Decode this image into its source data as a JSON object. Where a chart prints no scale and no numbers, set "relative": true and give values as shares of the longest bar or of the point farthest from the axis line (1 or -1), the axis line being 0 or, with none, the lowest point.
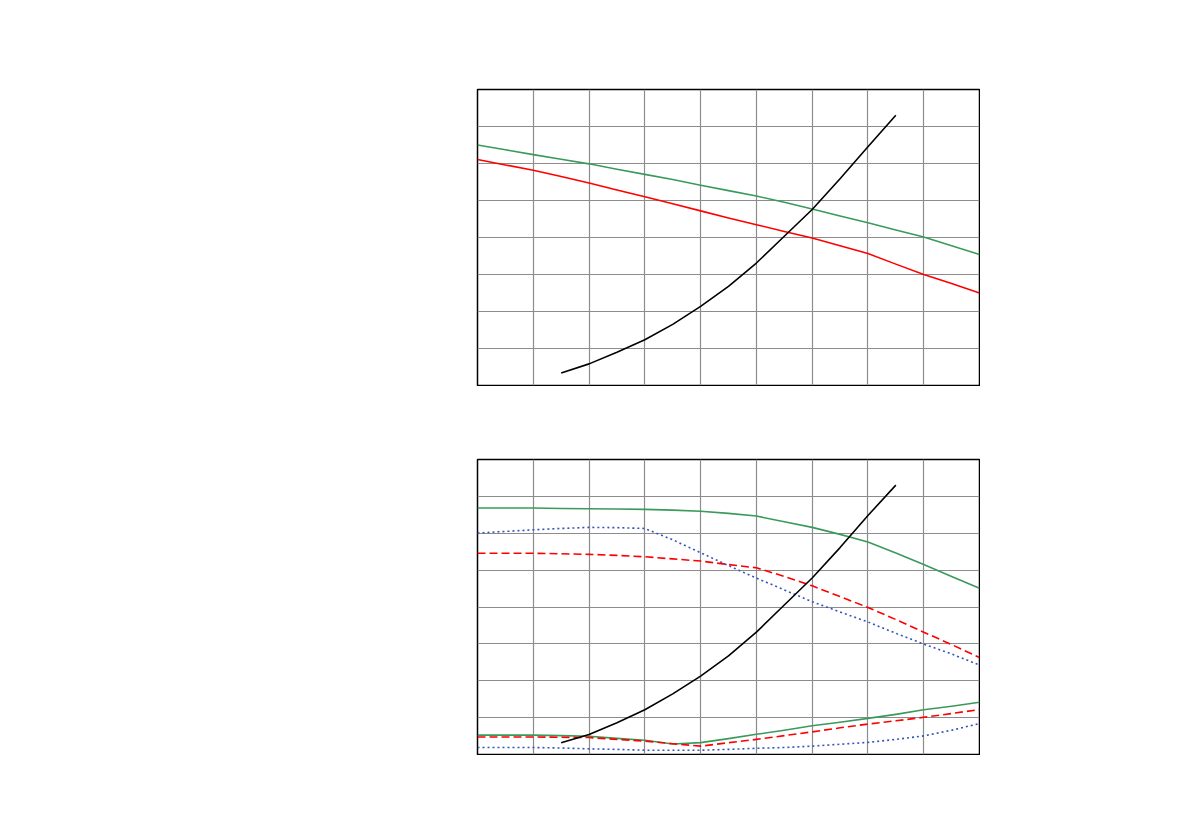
{
  "chart_data": [
    {
      "type": "line",
      "relative": true,
      "grid": true,
      "tick_labels": false,
      "categories": [
        null,
        null,
        null,
        null,
        null,
        null,
        null,
        null,
        null,
        null,
        null,
        null,
        null,
        null,
        null,
        null,
        null,
        null,
        null
      ],
      "series": [
        {
          "color": "#3a9a5c",
          "line_style": "solid",
          "values": [
            0.89,
            0.872,
            0.854,
            0.837,
            0.82,
            0.8,
            0.781,
            0.762,
            0.741,
            0.721,
            0.701,
            0.678,
            0.653,
            0.627,
            0.602,
            0.575,
            0.549,
            0.517,
            0.485
          ]
        },
        {
          "color": "#ff0000",
          "line_style": "solid",
          "values": [
            0.836,
            0.816,
            0.796,
            0.773,
            0.749,
            0.723,
            0.698,
            0.672,
            0.646,
            0.62,
            0.595,
            0.57,
            0.546,
            0.517,
            0.488,
            0.449,
            0.411,
            0.377,
            0.342
          ]
        },
        {
          "color": "#000000",
          "line_style": "solid",
          "values": [
            null,
            null,
            null,
            0.046,
            0.08,
            0.123,
            0.169,
            0.226,
            0.293,
            0.367,
            0.453,
            0.552,
            0.651,
            0.765,
            0.883,
            1.0,
            null,
            null,
            null
          ]
        }
      ]
    },
    {
      "type": "line",
      "relative": true,
      "grid": true,
      "tick_labels": false,
      "categories": [
        null,
        null,
        null,
        null,
        null,
        null,
        null,
        null,
        null,
        null,
        null,
        null,
        null,
        null,
        null,
        null,
        null,
        null,
        null
      ],
      "series": [
        {
          "color": "#3a9a5c",
          "line_style": "solid",
          "values": [
            0.915,
            0.915,
            0.915,
            0.913,
            0.912,
            0.911,
            0.91,
            0.907,
            0.903,
            0.895,
            0.885,
            0.864,
            0.843,
            0.817,
            0.789,
            0.748,
            0.705,
            0.661,
            0.617
          ]
        },
        {
          "color": "#3355bb",
          "line_style": "dotted",
          "values": [
            0.822,
            0.828,
            0.834,
            0.839,
            0.843,
            0.842,
            0.839,
            0.797,
            0.749,
            0.701,
            0.655,
            0.611,
            0.567,
            0.529,
            0.492,
            0.45,
            0.41,
            0.373,
            0.332
          ]
        },
        {
          "color": "#ff0000",
          "line_style": "dashed",
          "values": [
            0.747,
            0.747,
            0.747,
            0.745,
            0.743,
            0.739,
            0.734,
            0.726,
            0.718,
            0.705,
            0.693,
            0.661,
            0.626,
            0.586,
            0.546,
            0.501,
            0.454,
            0.408,
            0.36
          ]
        },
        {
          "color": "#3a9a5c",
          "line_style": "solid",
          "values": [
            0.072,
            0.072,
            0.072,
            0.07,
            0.068,
            0.06,
            0.053,
            0.039,
            0.044,
            0.059,
            0.075,
            0.09,
            0.107,
            0.12,
            0.134,
            0.149,
            0.166,
            0.179,
            0.194
          ]
        },
        {
          "color": "#ff0000",
          "line_style": "dashed",
          "values": [
            0.065,
            0.065,
            0.065,
            0.064,
            0.063,
            0.056,
            0.05,
            0.04,
            0.031,
            0.044,
            0.056,
            0.07,
            0.084,
            0.099,
            0.113,
            0.125,
            0.138,
            0.152,
            0.167
          ]
        },
        {
          "color": "#3355bb",
          "line_style": "dotted",
          "values": [
            0.026,
            0.026,
            0.026,
            0.024,
            0.021,
            0.019,
            0.016,
            0.016,
            0.016,
            0.019,
            0.023,
            0.026,
            0.031,
            0.038,
            0.045,
            0.056,
            0.069,
            0.09,
            0.115
          ]
        },
        {
          "color": "#000000",
          "line_style": "solid",
          "values": [
            null,
            null,
            null,
            0.044,
            0.074,
            0.118,
            0.166,
            0.225,
            0.291,
            0.366,
            0.454,
            0.555,
            0.655,
            0.768,
            0.887,
            1.0,
            null,
            null,
            null
          ]
        }
      ]
    }
  ]
}
